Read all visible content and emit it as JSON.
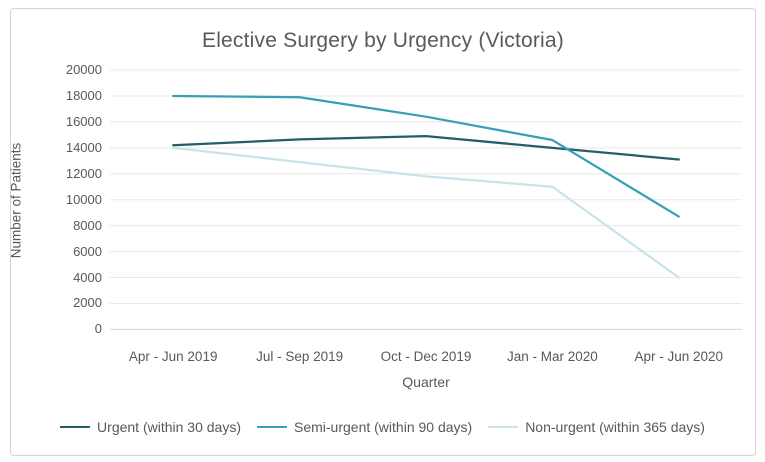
{
  "window": {
    "background_color": "#ffffff",
    "card_border_color": "#d4d4d4"
  },
  "chart_data": {
    "type": "line",
    "title": "Elective Surgery by Urgency (Victoria)",
    "xlabel": "Quarter",
    "ylabel": "Number of Patients",
    "categories": [
      "Apr - Jun 2019",
      "Jul - Sep 2019",
      "Oct - Dec 2019",
      "Jan - Mar 2020",
      "Apr - Jun 2020"
    ],
    "series": [
      {
        "name": "Urgent (within 30 days)",
        "color": "#235e6a",
        "values": [
          14200,
          14650,
          14900,
          14000,
          13100
        ]
      },
      {
        "name": "Semi-urgent (within 90 days)",
        "color": "#35a0b5",
        "values": [
          18000,
          17900,
          16400,
          14600,
          8700
        ]
      },
      {
        "name": "Non-urgent (within 365 days)",
        "color": "#c8e4ea",
        "values": [
          14000,
          12900,
          11800,
          11000,
          4000
        ]
      }
    ],
    "ylim": [
      0,
      20000
    ],
    "ytick_step": 2000,
    "ytick_labels": [
      "20000",
      "18000",
      "16000",
      "14000",
      "12000",
      "10000",
      "8000",
      "6000",
      "4000",
      "2000",
      "0"
    ],
    "grid": true,
    "gridline_color": "#e8e8e8",
    "axisline_color": "#d2d2d2",
    "text_color": "#595959",
    "legend_position": "bottom"
  }
}
